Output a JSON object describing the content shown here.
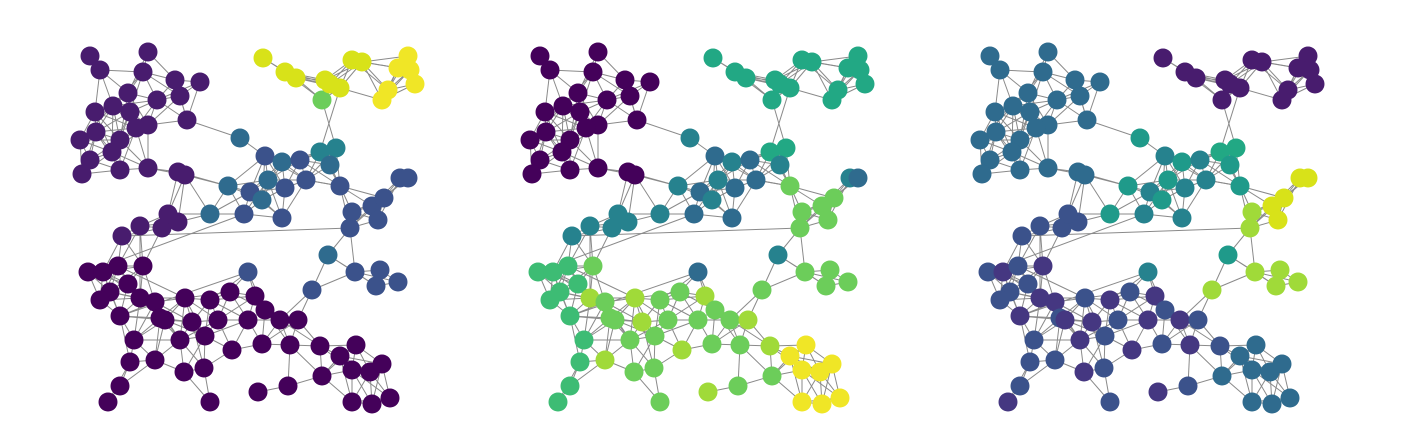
{
  "figure": {
    "panels": [
      {
        "name": "graph-panel-1",
        "node_color_map": "viridis"
      },
      {
        "name": "graph-panel-2",
        "node_color_map": "viridis"
      },
      {
        "name": "graph-panel-3",
        "node_color_map": "viridis"
      }
    ],
    "edge_color": "#8a8a8a",
    "node_palette": {
      "p1": "#44015a",
      "p2": "#481c6e",
      "p3": "#453781",
      "p4": "#3b528b",
      "p5": "#2f6b8e",
      "p6": "#26828e",
      "p7": "#1f9a8a",
      "p8": "#22a884",
      "p9": "#3dbc74",
      "p10": "#6ccd5a",
      "p11": "#a0da39",
      "p12": "#d8e219",
      "p13": "#f0e626"
    }
  }
}
